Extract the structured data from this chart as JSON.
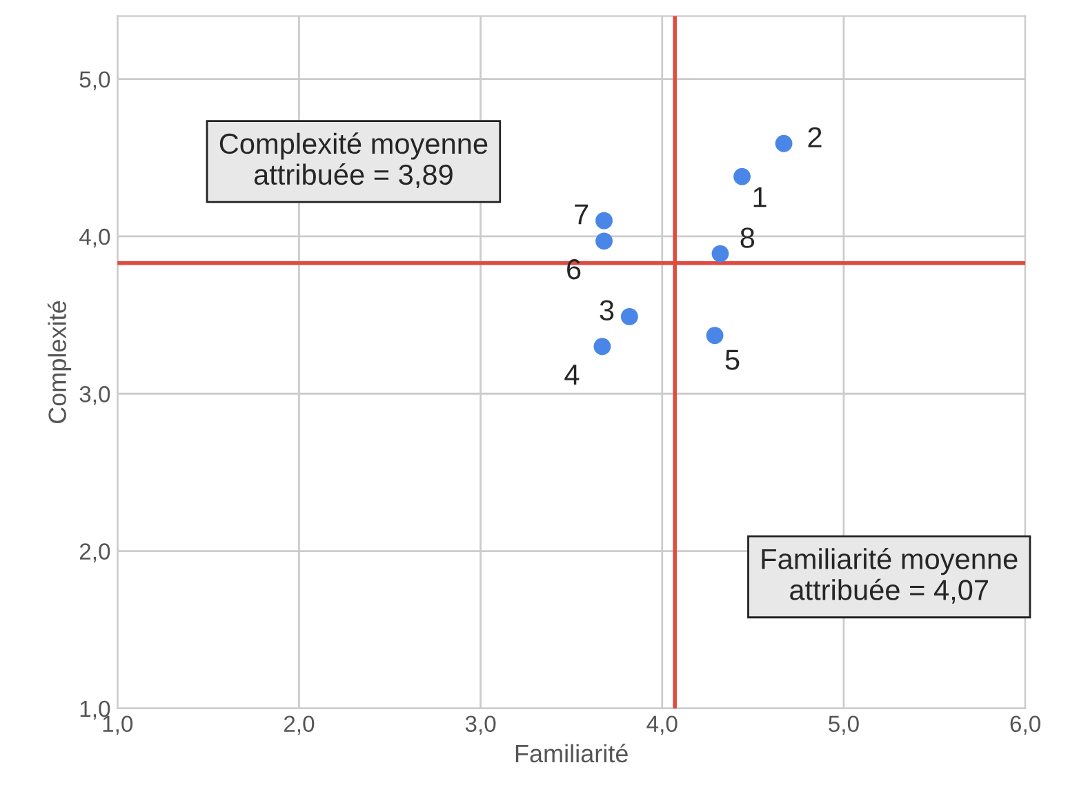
{
  "chart_data": {
    "type": "scatter",
    "xlabel": "Familiarité",
    "ylabel": "Complexité",
    "series": [
      {
        "color": "#4a86e8",
        "x": [
          4.44,
          4.67,
          3.82,
          3.67,
          4.29,
          3.68,
          3.68,
          4.32
        ],
        "values": [
          4.38,
          4.59,
          3.49,
          3.3,
          3.37,
          3.97,
          4.1,
          3.89
        ]
      }
    ],
    "marker": "circle",
    "xlim": [
      1,
      6
    ],
    "ylim": [
      1,
      5.4
    ],
    "xticks": [
      {
        "value": 1,
        "label": "1,0"
      },
      {
        "value": 2,
        "label": "2,0"
      },
      {
        "value": 3,
        "label": "3,0"
      },
      {
        "value": 4,
        "label": "4,0"
      },
      {
        "value": 5,
        "label": "5,0"
      },
      {
        "value": 6,
        "label": "6,0"
      }
    ],
    "yticks": [
      {
        "value": 1,
        "label": "1,0"
      },
      {
        "value": 2,
        "label": "2,0"
      },
      {
        "value": 3,
        "label": "3,0"
      },
      {
        "value": 4,
        "label": "4,0"
      },
      {
        "value": 5,
        "label": "5,0"
      }
    ],
    "grid": true,
    "ref_lines": [
      {
        "axis": "y",
        "value": 3.83,
        "color": "#e04a3f"
      },
      {
        "axis": "x",
        "value": 4.07,
        "color": "#e04a3f"
      }
    ],
    "annotations": [
      {
        "text": "1",
        "x": 4.44,
        "y": 4.38
      },
      {
        "text": "2",
        "x": 4.67,
        "y": 4.59
      },
      {
        "text": "3",
        "x": 3.82,
        "y": 3.49
      },
      {
        "text": "4",
        "x": 3.67,
        "y": 3.3
      },
      {
        "text": "5",
        "x": 4.29,
        "y": 3.37
      },
      {
        "text": "6",
        "x": 3.68,
        "y": 3.97
      },
      {
        "text": "7",
        "x": 3.68,
        "y": 4.1
      },
      {
        "text": "8",
        "x": 4.32,
        "y": 3.89
      },
      "Complexité moyenne\nattribuée = 3,89",
      "Familiarité moyenne\nattribuée = 4,07"
    ]
  }
}
